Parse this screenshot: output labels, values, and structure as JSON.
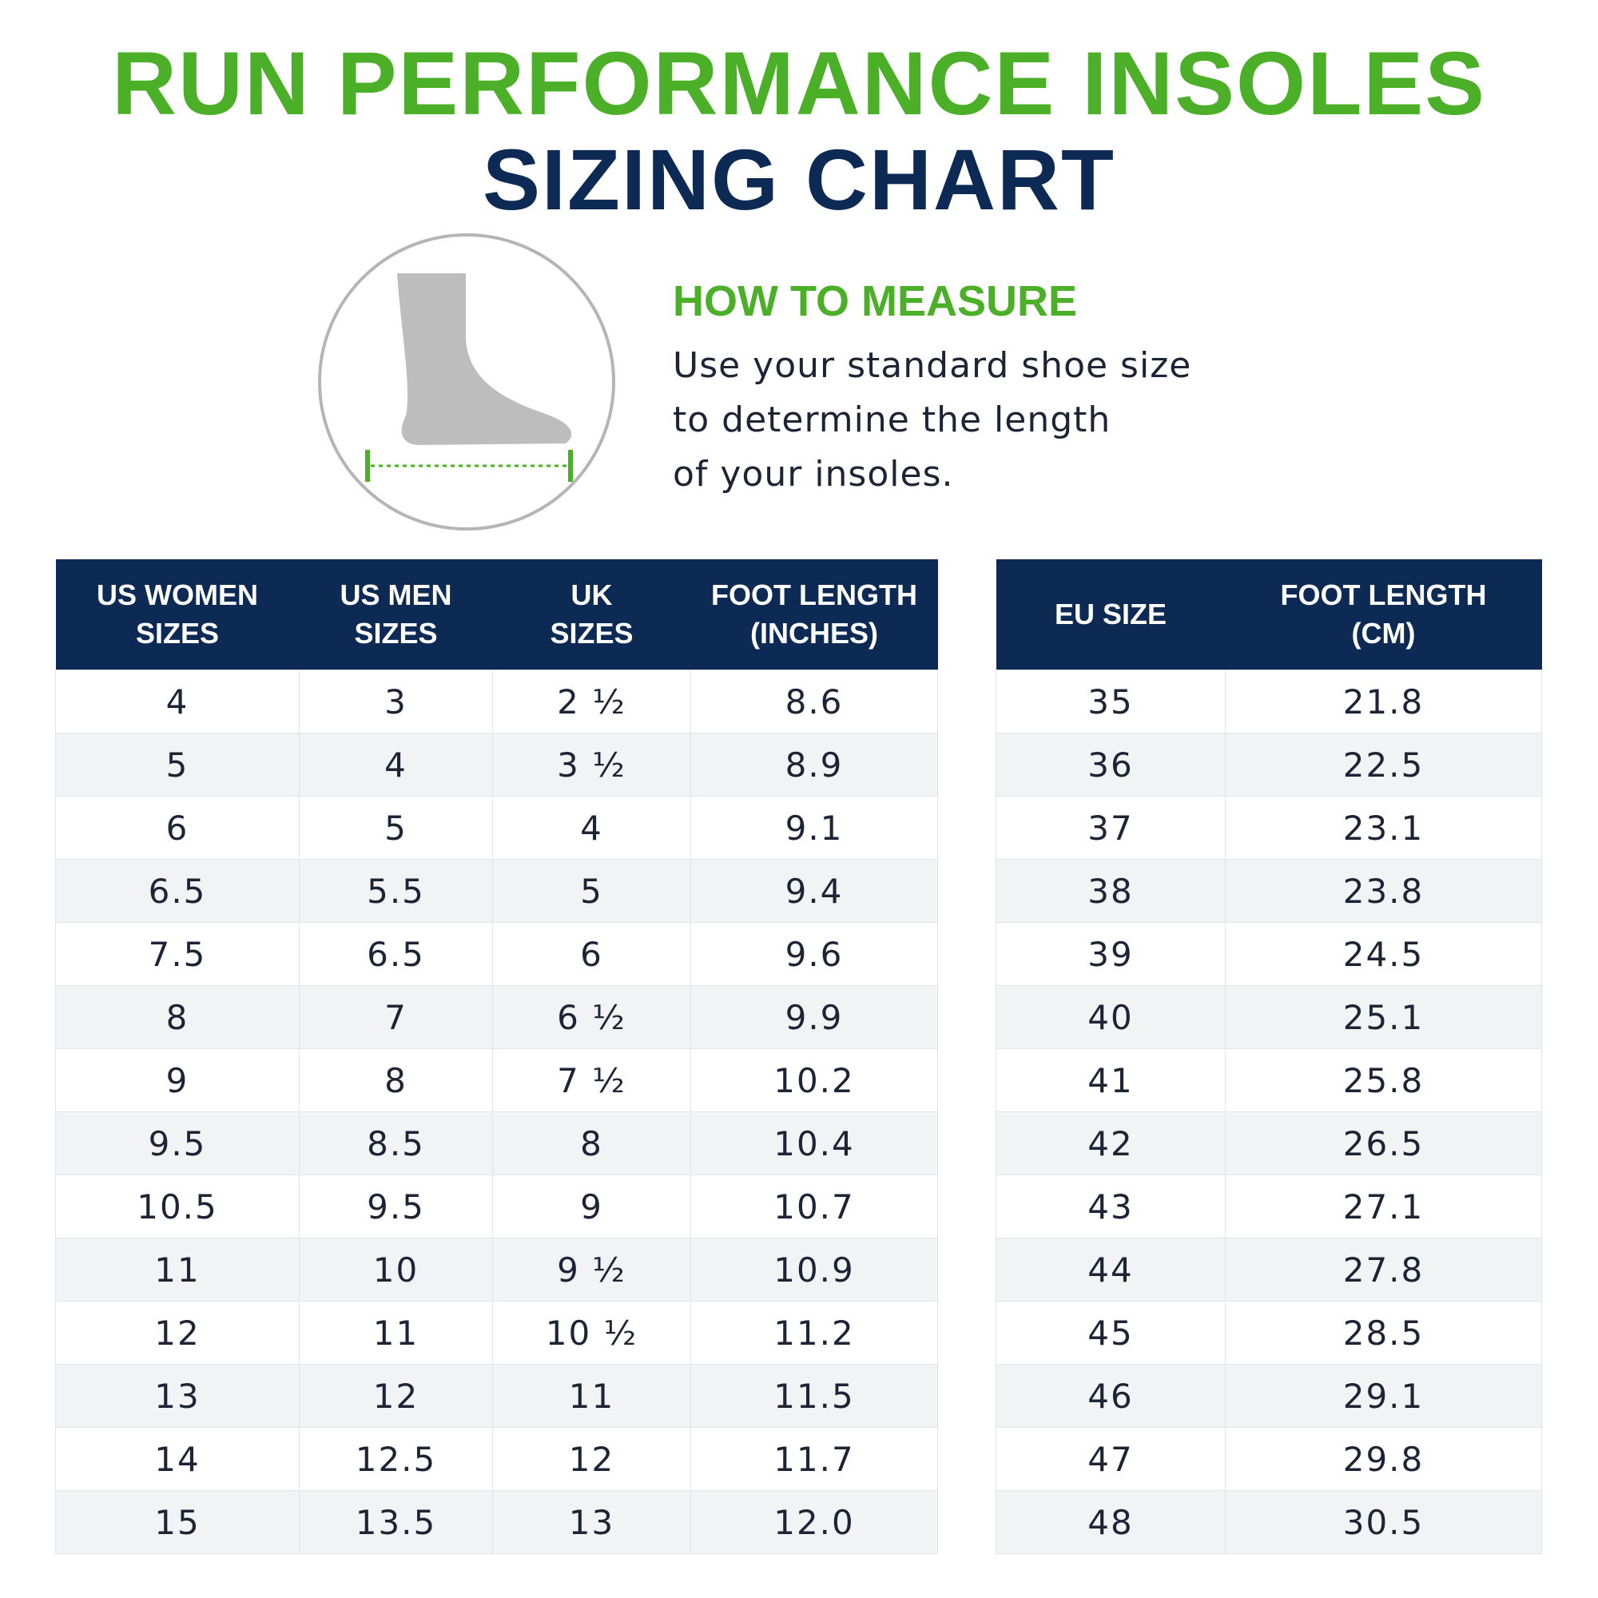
{
  "header": {
    "title": "RUN PERFORMANCE INSOLES",
    "subtitle": "SIZING CHART"
  },
  "measure": {
    "heading": "HOW TO MEASURE",
    "lines": [
      "Use your standard shoe size",
      "to determine the length",
      "of your insoles."
    ]
  },
  "table": {
    "headers": [
      "US WOMEN\nSIZES",
      "US MEN\nSIZES",
      "UK\nSIZES",
      "FOOT LENGTH\n(INCHES)"
    ],
    "rows": [
      [
        "4",
        "3",
        "2 ½",
        "8.6"
      ],
      [
        "5",
        "4",
        "3 ½",
        "8.9"
      ],
      [
        "6",
        "5",
        "4",
        "9.1"
      ],
      [
        "6.5",
        "5.5",
        "5",
        "9.4"
      ],
      [
        "7.5",
        "6.5",
        "6",
        "9.6"
      ],
      [
        "8",
        "7",
        "6 ½",
        "9.9"
      ],
      [
        "9",
        "8",
        "7 ½",
        "10.2"
      ],
      [
        "9.5",
        "8.5",
        "8",
        "10.4"
      ],
      [
        "10.5",
        "9.5",
        "9",
        "10.7"
      ],
      [
        "11",
        "10",
        "9 ½",
        "10.9"
      ],
      [
        "12",
        "11",
        "10 ½",
        "11.2"
      ],
      [
        "13",
        "12",
        "11",
        "11.5"
      ],
      [
        "14",
        "12.5",
        "12",
        "11.7"
      ],
      [
        "15",
        "13.5",
        "13",
        "12.0"
      ]
    ]
  },
  "eu_table": {
    "headers": [
      "EU SIZE",
      "FOOT LENGTH\n(CM)"
    ],
    "rows": [
      [
        "35",
        "21.8"
      ],
      [
        "36",
        "22.5"
      ],
      [
        "37",
        "23.1"
      ],
      [
        "38",
        "23.8"
      ],
      [
        "39",
        "24.5"
      ],
      [
        "40",
        "25.1"
      ],
      [
        "41",
        "25.8"
      ],
      [
        "42",
        "26.5"
      ],
      [
        "43",
        "27.1"
      ],
      [
        "44",
        "27.8"
      ],
      [
        "45",
        "28.5"
      ],
      [
        "46",
        "29.1"
      ],
      [
        "47",
        "29.8"
      ],
      [
        "48",
        "30.5"
      ]
    ]
  }
}
